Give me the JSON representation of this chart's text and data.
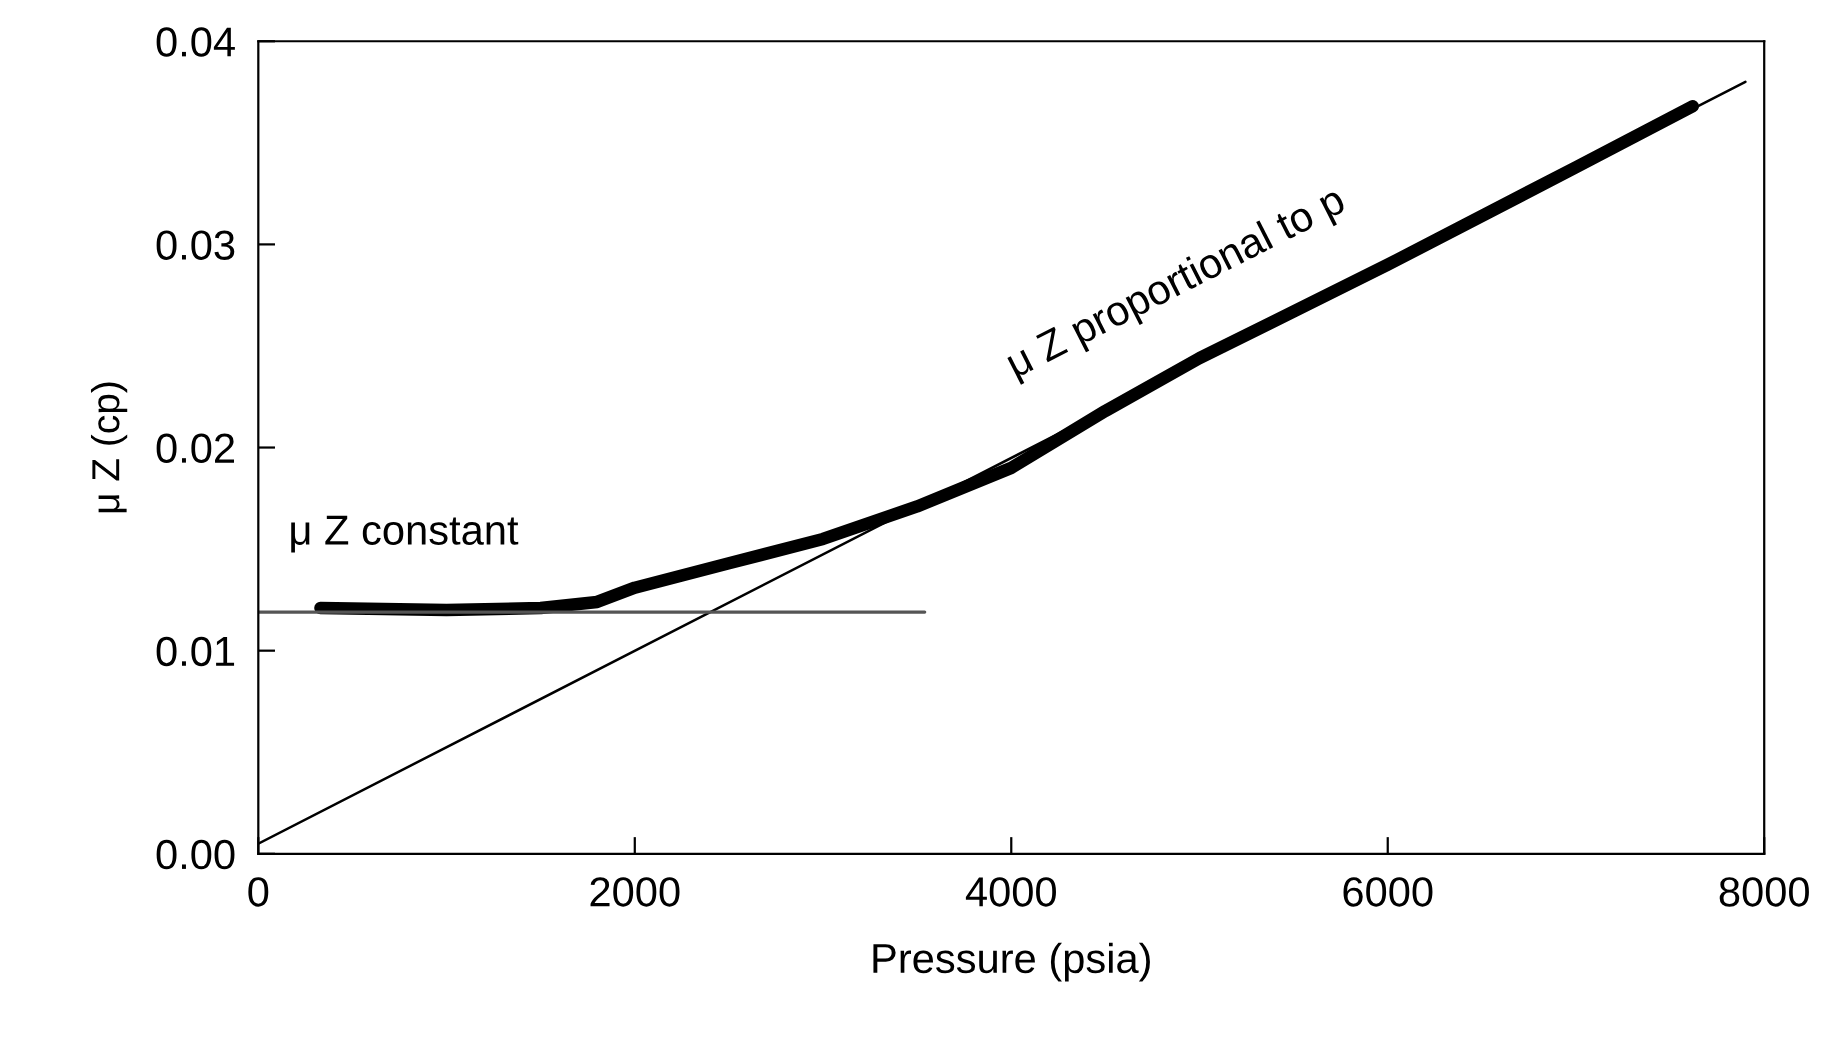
{
  "chart_data": {
    "type": "line",
    "xlabel": "Pressure (psia)",
    "ylabel": "μ Z (cp)",
    "xlim": [
      0,
      8000
    ],
    "ylim": [
      0,
      0.04
    ],
    "xticks": [
      0,
      2000,
      4000,
      6000,
      8000
    ],
    "yticks": [
      {
        "value": 0,
        "label": "0.00"
      },
      0.01,
      0.02,
      0.03,
      0.04
    ],
    "grid": false,
    "legend": false,
    "marker": "none",
    "line_style": "solid",
    "series": [
      {
        "color": "#000000",
        "x": [
          330,
          1000,
          1500,
          1800,
          2000,
          2500,
          3000,
          3500,
          4000,
          4500,
          5000,
          6000,
          7000,
          7620
        ],
        "values": [
          0.0121,
          0.012,
          0.0121,
          0.0124,
          0.0131,
          0.0143,
          0.0155,
          0.0171,
          0.019,
          0.0218,
          0.0244,
          0.029,
          0.0338,
          0.0368
        ]
      },
      {
        "type": "line",
        "color": "#000000",
        "x": [
          0,
          7900
        ],
        "values": [
          0.0005,
          0.038
        ]
      },
      {
        "type": "line",
        "color": "#555555",
        "x": [
          0,
          3540
        ],
        "values": [
          0.0119,
          0.0119
        ]
      }
    ],
    "annotations": [
      "μ Z constant",
      "μ Z proportional to p"
    ]
  }
}
